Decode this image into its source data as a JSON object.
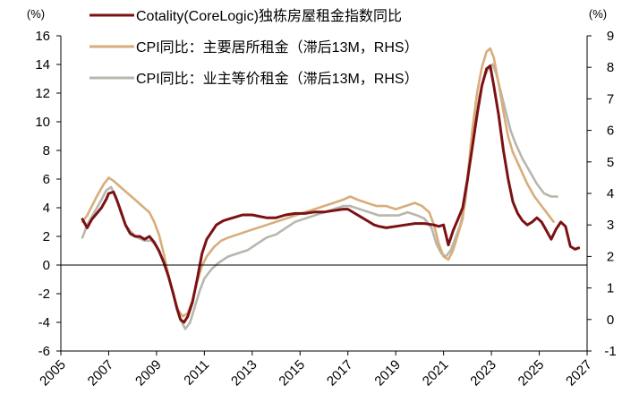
{
  "chart_data": {
    "type": "line",
    "left_unit": "(%)",
    "right_unit": "(%)",
    "x_range": [
      2005,
      2027
    ],
    "x_ticks": [
      "2005",
      "2007",
      "2009",
      "2011",
      "2013",
      "2015",
      "2017",
      "2019",
      "2021",
      "2023",
      "2025",
      "2027"
    ],
    "y_left_range": [
      -6,
      16
    ],
    "y_left_ticks": [
      "-6",
      "-4",
      "-2",
      "0",
      "2",
      "4",
      "6",
      "8",
      "10",
      "12",
      "14",
      "16"
    ],
    "y_right_range": [
      -1,
      9
    ],
    "y_right_ticks": [
      "-1",
      "0",
      "1",
      "2",
      "3",
      "4",
      "5",
      "6",
      "7",
      "8",
      "9"
    ],
    "legend_position": "top-left",
    "grid": false,
    "series": [
      {
        "name": "Cotality(CoreLogic)独栋房屋租金指数同比",
        "axis": "left",
        "color": "#7b1113",
        "points": [
          [
            2005.9,
            3.2
          ],
          [
            2006.1,
            2.6
          ],
          [
            2006.3,
            3.2
          ],
          [
            2006.5,
            3.6
          ],
          [
            2006.7,
            4.0
          ],
          [
            2006.9,
            4.6
          ],
          [
            2007.0,
            5.0
          ],
          [
            2007.2,
            5.1
          ],
          [
            2007.35,
            4.5
          ],
          [
            2007.5,
            3.8
          ],
          [
            2007.7,
            2.8
          ],
          [
            2007.9,
            2.2
          ],
          [
            2008.1,
            2.0
          ],
          [
            2008.3,
            2.0
          ],
          [
            2008.5,
            1.8
          ],
          [
            2008.7,
            2.0
          ],
          [
            2008.9,
            1.6
          ],
          [
            2009.1,
            1.0
          ],
          [
            2009.3,
            0.2
          ],
          [
            2009.5,
            -0.8
          ],
          [
            2009.7,
            -2.0
          ],
          [
            2009.85,
            -3.0
          ],
          [
            2010.0,
            -3.8
          ],
          [
            2010.15,
            -4.0
          ],
          [
            2010.3,
            -3.6
          ],
          [
            2010.5,
            -2.6
          ],
          [
            2010.7,
            -1.0
          ],
          [
            2010.9,
            0.8
          ],
          [
            2011.1,
            1.8
          ],
          [
            2011.3,
            2.3
          ],
          [
            2011.5,
            2.8
          ],
          [
            2011.8,
            3.1
          ],
          [
            2012.2,
            3.3
          ],
          [
            2012.6,
            3.5
          ],
          [
            2013.0,
            3.5
          ],
          [
            2013.3,
            3.4
          ],
          [
            2013.6,
            3.3
          ],
          [
            2014.0,
            3.3
          ],
          [
            2014.4,
            3.5
          ],
          [
            2014.8,
            3.6
          ],
          [
            2015.2,
            3.6
          ],
          [
            2015.6,
            3.7
          ],
          [
            2016.0,
            3.7
          ],
          [
            2016.4,
            3.8
          ],
          [
            2016.8,
            3.9
          ],
          [
            2017.0,
            3.9
          ],
          [
            2017.3,
            3.6
          ],
          [
            2017.6,
            3.3
          ],
          [
            2017.9,
            3.0
          ],
          [
            2018.1,
            2.8
          ],
          [
            2018.3,
            2.7
          ],
          [
            2018.6,
            2.6
          ],
          [
            2019.0,
            2.7
          ],
          [
            2019.4,
            2.8
          ],
          [
            2019.8,
            2.9
          ],
          [
            2020.2,
            2.9
          ],
          [
            2020.6,
            2.8
          ],
          [
            2020.8,
            2.7
          ],
          [
            2021.0,
            2.8
          ],
          [
            2021.2,
            1.4
          ],
          [
            2021.4,
            2.4
          ],
          [
            2021.6,
            3.2
          ],
          [
            2021.8,
            4.0
          ],
          [
            2022.0,
            6.0
          ],
          [
            2022.2,
            8.2
          ],
          [
            2022.4,
            10.5
          ],
          [
            2022.6,
            12.5
          ],
          [
            2022.8,
            13.7
          ],
          [
            2022.95,
            13.9
          ],
          [
            2023.1,
            12.5
          ],
          [
            2023.3,
            10.5
          ],
          [
            2023.5,
            8.0
          ],
          [
            2023.7,
            6.0
          ],
          [
            2023.9,
            4.4
          ],
          [
            2024.1,
            3.6
          ],
          [
            2024.3,
            3.1
          ],
          [
            2024.5,
            2.8
          ],
          [
            2024.7,
            3.0
          ],
          [
            2024.9,
            3.3
          ],
          [
            2025.1,
            3.0
          ],
          [
            2025.3,
            2.4
          ],
          [
            2025.5,
            1.8
          ],
          [
            2025.7,
            2.5
          ],
          [
            2025.9,
            3.0
          ],
          [
            2026.1,
            2.7
          ],
          [
            2026.3,
            1.3
          ],
          [
            2026.5,
            1.1
          ],
          [
            2026.65,
            1.2
          ]
        ]
      },
      {
        "name": "CPI同比：主要居所租金（滞后13M，RHS）",
        "axis": "right",
        "color": "#d8ad7a",
        "points": [
          [
            2005.9,
            3.1
          ],
          [
            2006.1,
            3.3
          ],
          [
            2006.3,
            3.6
          ],
          [
            2006.5,
            3.9
          ],
          [
            2006.8,
            4.3
          ],
          [
            2007.0,
            4.5
          ],
          [
            2007.2,
            4.4
          ],
          [
            2007.5,
            4.2
          ],
          [
            2007.8,
            4.0
          ],
          [
            2008.1,
            3.8
          ],
          [
            2008.4,
            3.6
          ],
          [
            2008.7,
            3.4
          ],
          [
            2008.9,
            3.1
          ],
          [
            2009.1,
            2.7
          ],
          [
            2009.3,
            2.1
          ],
          [
            2009.5,
            1.4
          ],
          [
            2009.7,
            0.8
          ],
          [
            2009.9,
            0.3
          ],
          [
            2010.1,
            0.1
          ],
          [
            2010.3,
            0.2
          ],
          [
            2010.5,
            0.6
          ],
          [
            2010.7,
            1.2
          ],
          [
            2010.9,
            1.7
          ],
          [
            2011.1,
            2.0
          ],
          [
            2011.4,
            2.3
          ],
          [
            2011.7,
            2.5
          ],
          [
            2012.0,
            2.6
          ],
          [
            2012.4,
            2.7
          ],
          [
            2012.8,
            2.8
          ],
          [
            2013.2,
            2.9
          ],
          [
            2013.6,
            3.0
          ],
          [
            2014.0,
            3.1
          ],
          [
            2014.4,
            3.2
          ],
          [
            2014.8,
            3.3
          ],
          [
            2015.2,
            3.4
          ],
          [
            2015.6,
            3.5
          ],
          [
            2016.0,
            3.6
          ],
          [
            2016.4,
            3.7
          ],
          [
            2016.8,
            3.8
          ],
          [
            2017.1,
            3.9
          ],
          [
            2017.4,
            3.8
          ],
          [
            2017.8,
            3.7
          ],
          [
            2018.2,
            3.6
          ],
          [
            2018.6,
            3.6
          ],
          [
            2019.0,
            3.5
          ],
          [
            2019.4,
            3.6
          ],
          [
            2019.8,
            3.7
          ],
          [
            2020.1,
            3.6
          ],
          [
            2020.4,
            3.4
          ],
          [
            2020.6,
            3.0
          ],
          [
            2020.8,
            2.4
          ],
          [
            2021.0,
            2.0
          ],
          [
            2021.2,
            1.9
          ],
          [
            2021.4,
            2.2
          ],
          [
            2021.6,
            2.7
          ],
          [
            2021.8,
            3.2
          ],
          [
            2022.0,
            4.5
          ],
          [
            2022.2,
            6.0
          ],
          [
            2022.4,
            7.2
          ],
          [
            2022.6,
            8.0
          ],
          [
            2022.8,
            8.5
          ],
          [
            2022.95,
            8.6
          ],
          [
            2023.1,
            8.3
          ],
          [
            2023.3,
            7.5
          ],
          [
            2023.5,
            6.6
          ],
          [
            2023.7,
            5.8
          ],
          [
            2023.9,
            5.3
          ],
          [
            2024.2,
            4.8
          ],
          [
            2024.5,
            4.3
          ],
          [
            2024.8,
            3.9
          ],
          [
            2025.1,
            3.6
          ],
          [
            2025.4,
            3.3
          ],
          [
            2025.6,
            3.1
          ]
        ]
      },
      {
        "name": "CPI同比：业主等价租金（滞后13M，RHS）",
        "axis": "right",
        "color": "#b7b7ad",
        "points": [
          [
            2005.9,
            2.6
          ],
          [
            2006.1,
            3.0
          ],
          [
            2006.4,
            3.4
          ],
          [
            2006.7,
            3.8
          ],
          [
            2006.9,
            4.1
          ],
          [
            2007.1,
            4.2
          ],
          [
            2007.3,
            3.9
          ],
          [
            2007.5,
            3.4
          ],
          [
            2007.7,
            3.0
          ],
          [
            2007.9,
            2.8
          ],
          [
            2008.2,
            2.6
          ],
          [
            2008.5,
            2.5
          ],
          [
            2008.8,
            2.5
          ],
          [
            2009.0,
            2.3
          ],
          [
            2009.2,
            2.0
          ],
          [
            2009.4,
            1.6
          ],
          [
            2009.6,
            1.1
          ],
          [
            2009.8,
            0.5
          ],
          [
            2010.0,
            0.0
          ],
          [
            2010.2,
            -0.3
          ],
          [
            2010.4,
            -0.1
          ],
          [
            2010.6,
            0.4
          ],
          [
            2010.8,
            0.9
          ],
          [
            2011.0,
            1.3
          ],
          [
            2011.3,
            1.6
          ],
          [
            2011.6,
            1.8
          ],
          [
            2012.0,
            2.0
          ],
          [
            2012.4,
            2.1
          ],
          [
            2012.8,
            2.2
          ],
          [
            2013.2,
            2.4
          ],
          [
            2013.6,
            2.6
          ],
          [
            2014.0,
            2.7
          ],
          [
            2014.4,
            2.9
          ],
          [
            2014.8,
            3.1
          ],
          [
            2015.2,
            3.2
          ],
          [
            2015.6,
            3.3
          ],
          [
            2016.0,
            3.4
          ],
          [
            2016.4,
            3.5
          ],
          [
            2016.8,
            3.6
          ],
          [
            2017.1,
            3.6
          ],
          [
            2017.5,
            3.5
          ],
          [
            2017.9,
            3.4
          ],
          [
            2018.3,
            3.3
          ],
          [
            2018.7,
            3.3
          ],
          [
            2019.1,
            3.3
          ],
          [
            2019.5,
            3.4
          ],
          [
            2019.9,
            3.3
          ],
          [
            2020.2,
            3.2
          ],
          [
            2020.5,
            2.9
          ],
          [
            2020.7,
            2.4
          ],
          [
            2020.9,
            2.1
          ],
          [
            2021.1,
            2.0
          ],
          [
            2021.3,
            2.2
          ],
          [
            2021.5,
            2.6
          ],
          [
            2021.7,
            3.0
          ],
          [
            2021.9,
            3.7
          ],
          [
            2022.1,
            5.0
          ],
          [
            2022.3,
            6.2
          ],
          [
            2022.5,
            7.1
          ],
          [
            2022.7,
            7.7
          ],
          [
            2022.9,
            8.0
          ],
          [
            2023.05,
            8.1
          ],
          [
            2023.2,
            7.8
          ],
          [
            2023.4,
            7.2
          ],
          [
            2023.6,
            6.6
          ],
          [
            2023.8,
            6.0
          ],
          [
            2024.0,
            5.6
          ],
          [
            2024.3,
            5.1
          ],
          [
            2024.6,
            4.7
          ],
          [
            2024.9,
            4.3
          ],
          [
            2025.2,
            4.0
          ],
          [
            2025.5,
            3.9
          ],
          [
            2025.75,
            3.9
          ]
        ]
      }
    ]
  }
}
